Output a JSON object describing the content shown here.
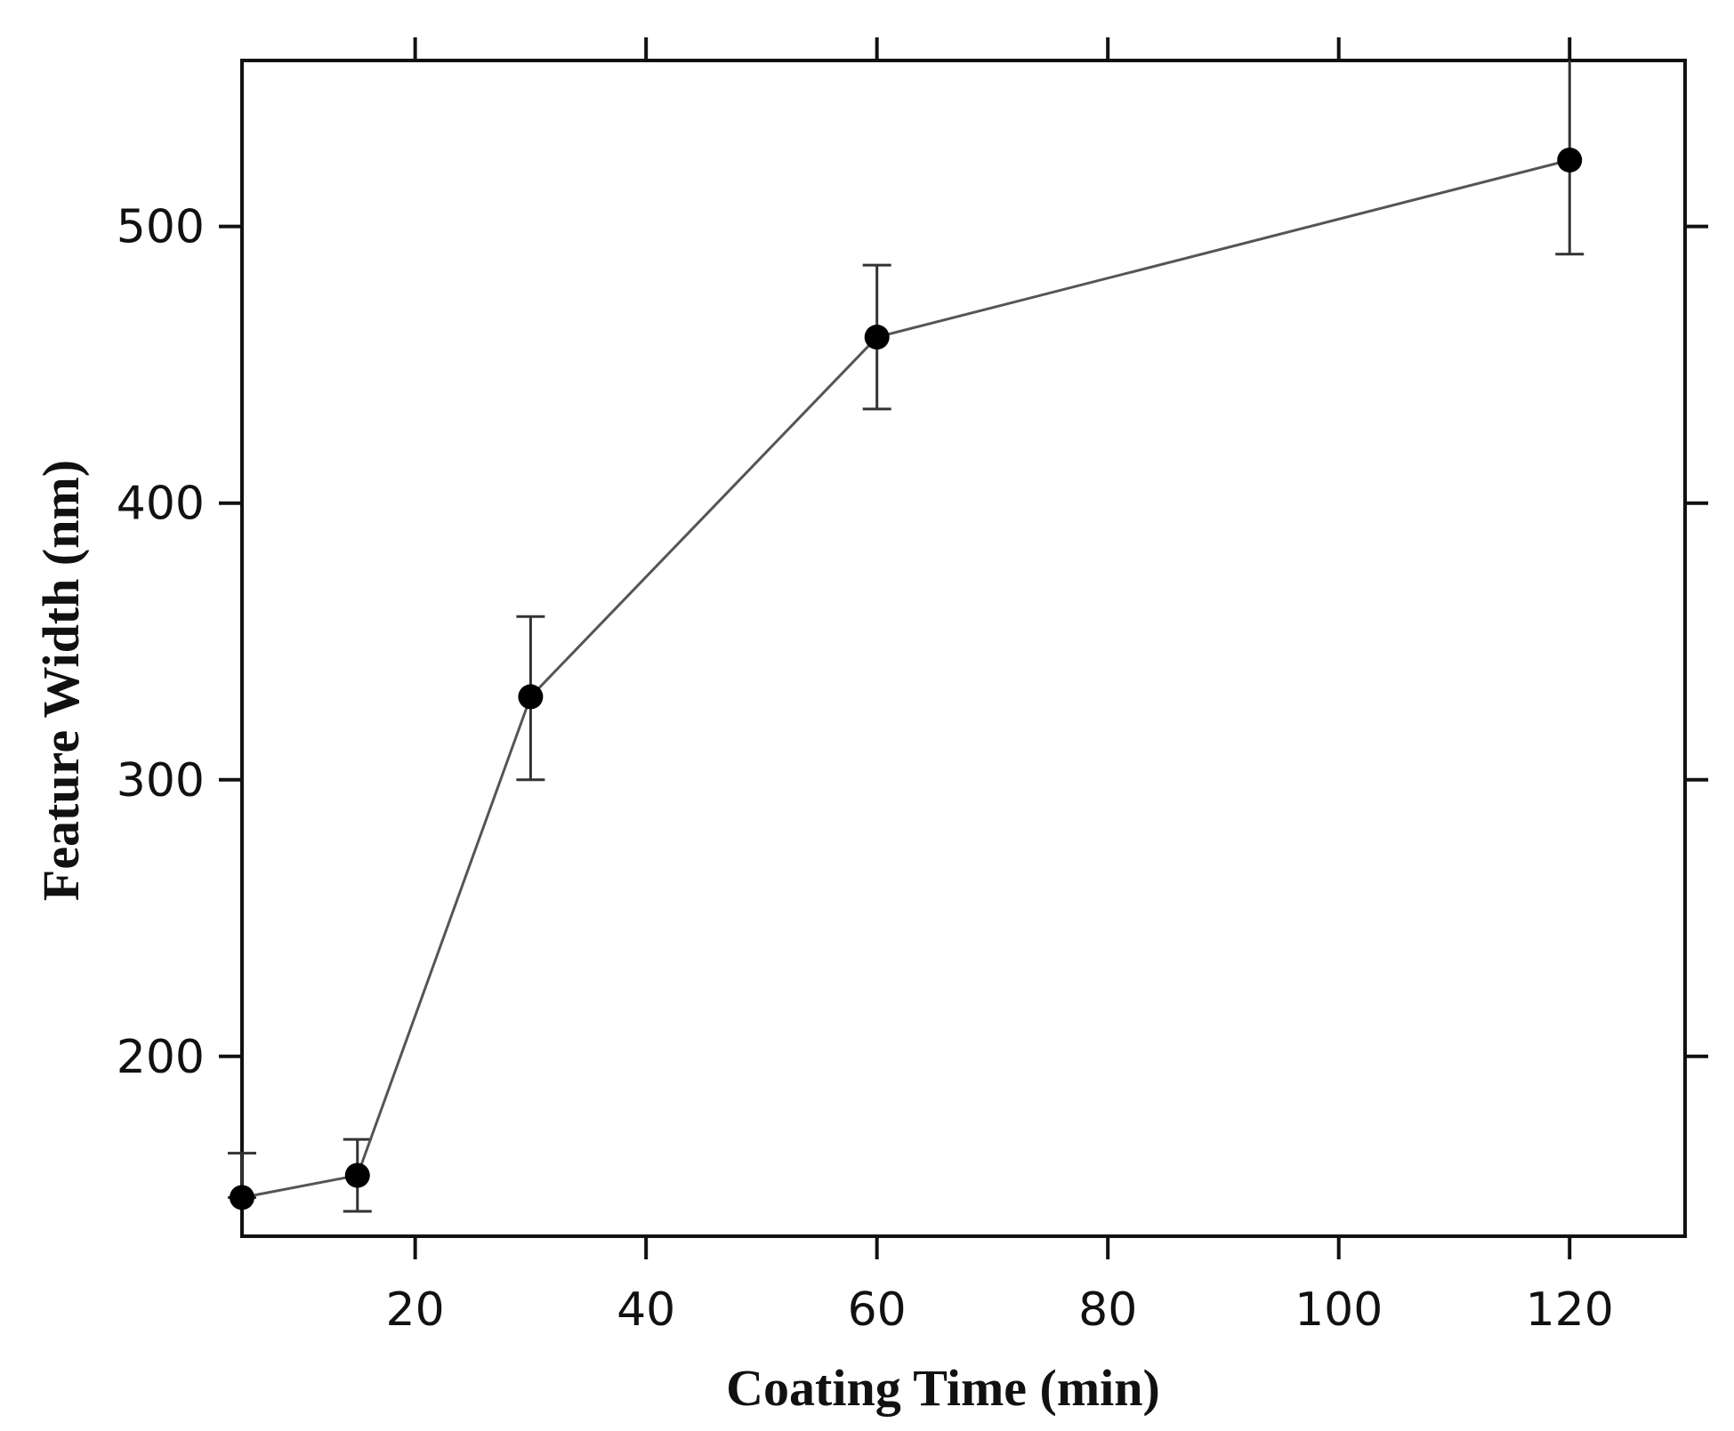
{
  "chart_data": {
    "type": "line",
    "title": "",
    "xlabel": "Coating Time (min)",
    "ylabel": "Feature Width (nm)",
    "xlim": [
      5,
      130
    ],
    "ylim": [
      135,
      560
    ],
    "xticks": [
      20,
      40,
      60,
      80,
      100,
      120
    ],
    "yticks": [
      200,
      300,
      400,
      500
    ],
    "grid": false,
    "series": [
      {
        "name": "Feature Width",
        "x": [
          5,
          15,
          30,
          60,
          120
        ],
        "y": [
          149,
          157,
          330,
          460,
          524
        ],
        "err_low": [
          149,
          144,
          300,
          434,
          490
        ],
        "err_high": [
          165,
          170,
          359,
          486,
          570
        ],
        "marker": "circle",
        "color": "#000000"
      }
    ]
  }
}
